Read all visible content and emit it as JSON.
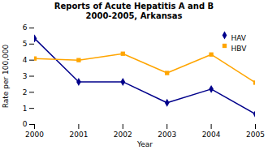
{
  "chart_data": {
    "type": "line",
    "title": "Reports of Acute Hepatitis A and B\n2000-2005, Arkansas",
    "xlabel": "Year",
    "ylabel": "Rate per 100,000",
    "x": [
      2000,
      2001,
      2002,
      2003,
      2004,
      2005
    ],
    "series": [
      {
        "name": "HAV",
        "color": "#00008B",
        "marker": "diamond",
        "values": [
          5.35,
          2.65,
          2.65,
          1.35,
          2.2,
          0.65
        ]
      },
      {
        "name": "HBV",
        "color": "#FFA500",
        "marker": "square",
        "values": [
          4.1,
          4.0,
          4.4,
          3.2,
          4.35,
          2.6
        ]
      }
    ],
    "xlim": [
      2000,
      2005
    ],
    "xticks": [
      2000,
      2001,
      2002,
      2003,
      2004,
      2005
    ],
    "ylim": [
      0,
      6
    ],
    "yticks": [
      0,
      1,
      2,
      3,
      4,
      5,
      6
    ],
    "legend": "upper right",
    "grid": false
  }
}
